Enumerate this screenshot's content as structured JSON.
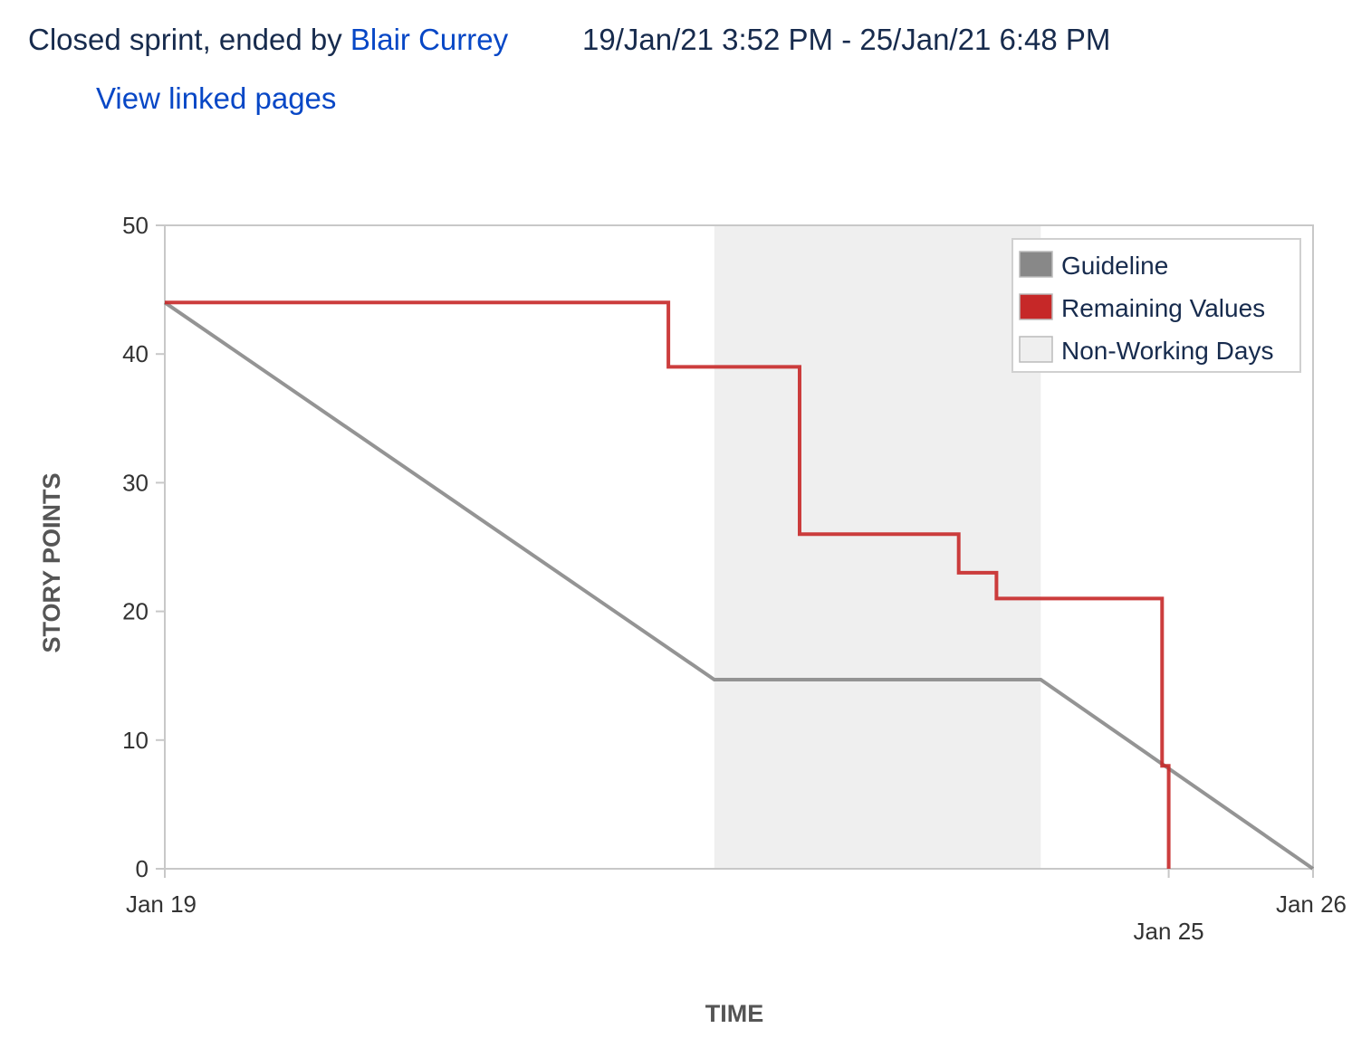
{
  "header": {
    "status_prefix": "Closed sprint, ended by ",
    "ended_by": "Blair Currey",
    "date_range": "19/Jan/21 3:52 PM - 25/Jan/21 6:48 PM",
    "linked_pages_label": "View linked pages"
  },
  "colors": {
    "guideline": "#888888",
    "remaining": "#c62828",
    "non_working": "#efefef",
    "link": "#0747c6"
  },
  "chart_data": {
    "type": "line",
    "xlabel": "TIME",
    "ylabel": "STORY POINTS",
    "x_unit": "days since sprint axis start (Jan 19)",
    "xlim": [
      0,
      7
    ],
    "ylim": [
      0,
      50
    ],
    "yticks": [
      0,
      10,
      20,
      30,
      40,
      50
    ],
    "xticks": [
      {
        "x": 0,
        "label": "Jan 19"
      },
      {
        "x": 6.12,
        "label": "Jan 25"
      },
      {
        "x": 7,
        "label": "Jan 26"
      }
    ],
    "non_working_days": [
      [
        3.35,
        5.34
      ]
    ],
    "legend": {
      "position": "top-right",
      "entries": [
        {
          "label": "Guideline",
          "color": "#888888"
        },
        {
          "label": "Remaining Values",
          "color": "#c62828"
        },
        {
          "label": "Non-Working Days",
          "color": "#efefef"
        }
      ]
    },
    "series": [
      {
        "name": "Guideline",
        "points": [
          [
            0,
            44
          ],
          [
            3.35,
            14.7
          ],
          [
            5.34,
            14.7
          ],
          [
            7,
            0
          ]
        ]
      },
      {
        "name": "Remaining Values",
        "style": "step",
        "points": [
          [
            0,
            44
          ],
          [
            3.07,
            44
          ],
          [
            3.07,
            39
          ],
          [
            3.87,
            39
          ],
          [
            3.87,
            26
          ],
          [
            4.84,
            26
          ],
          [
            4.84,
            23
          ],
          [
            5.07,
            23
          ],
          [
            5.07,
            21
          ],
          [
            6.08,
            21
          ],
          [
            6.08,
            8
          ],
          [
            6.12,
            8
          ],
          [
            6.12,
            0
          ]
        ]
      }
    ]
  }
}
